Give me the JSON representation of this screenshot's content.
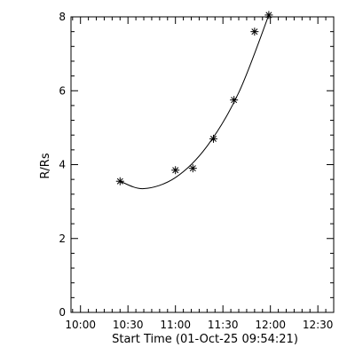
{
  "colors": {
    "background": "#ffffff",
    "foreground": "#000000"
  },
  "chart_data": {
    "type": "scatter",
    "title": "",
    "xlabel": "Start Time (01-Oct-25 09:54:21)",
    "ylabel": "R/Rs",
    "marker": "asterisk",
    "grid": false,
    "xlim": [
      "09:54",
      "12:40"
    ],
    "ylim": [
      0,
      8
    ],
    "xticks": [
      "10:00",
      "10:30",
      "11:00",
      "11:30",
      "12:00",
      "12:30"
    ],
    "yticks": [
      "0",
      "2",
      "4",
      "6",
      "8"
    ],
    "series": [
      {
        "type": "scatter",
        "x": [
          "10:25",
          "11:00",
          "11:11",
          "11:24",
          "11:37",
          "11:50",
          "11:59"
        ],
        "y": [
          3.55,
          3.85,
          3.9,
          4.7,
          5.75,
          7.6,
          8.05
        ]
      },
      {
        "type": "line",
        "fit": "quadratic",
        "x": [
          "10:25",
          "10:40",
          "11:00",
          "11:20",
          "11:40",
          "11:59"
        ],
        "y": [
          3.55,
          3.35,
          3.65,
          4.5,
          5.95,
          8.05
        ]
      }
    ]
  }
}
